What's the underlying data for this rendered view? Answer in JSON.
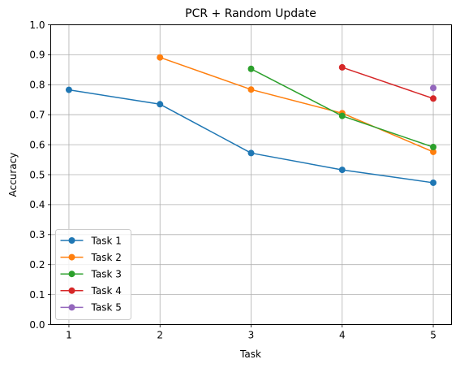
{
  "chart_data": {
    "type": "line",
    "title": "PCR + Random Update",
    "xlabel": "Task",
    "ylabel": "Accuracy",
    "x_ticks": [
      "1",
      "2",
      "3",
      "4",
      "5"
    ],
    "y_ticks": [
      "0.0",
      "0.1",
      "0.2",
      "0.3",
      "0.4",
      "0.5",
      "0.6",
      "0.7",
      "0.8",
      "0.9",
      "1.0"
    ],
    "xlim": [
      0.8,
      5.2
    ],
    "ylim": [
      0.0,
      1.0
    ],
    "grid": true,
    "legend_position": "lower-left",
    "series": [
      {
        "name": "Task 1",
        "color": "#1f77b4",
        "x": [
          1,
          2,
          3,
          4,
          5
        ],
        "y": [
          0.783,
          0.735,
          0.572,
          0.516,
          0.473
        ]
      },
      {
        "name": "Task 2",
        "color": "#ff7f0e",
        "x": [
          2,
          3,
          4,
          5
        ],
        "y": [
          0.891,
          0.784,
          0.705,
          0.576
        ]
      },
      {
        "name": "Task 3",
        "color": "#2ca02c",
        "x": [
          3,
          4,
          5
        ],
        "y": [
          0.853,
          0.696,
          0.592
        ]
      },
      {
        "name": "Task 4",
        "color": "#d62728",
        "x": [
          4,
          5
        ],
        "y": [
          0.858,
          0.754
        ]
      },
      {
        "name": "Task 5",
        "color": "#9467bd",
        "x": [
          5
        ],
        "y": [
          0.789
        ]
      }
    ]
  }
}
